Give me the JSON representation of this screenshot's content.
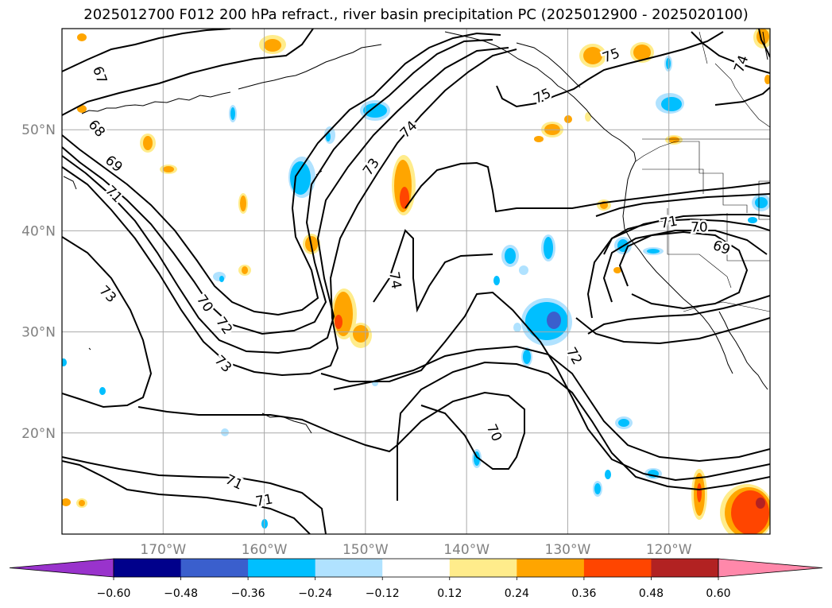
{
  "title": "2025012700 F012 200 hPa refract., river basin precipitation PC (2025012900 - 2025020100)",
  "map": {
    "lon_range": [
      -180,
      -110
    ],
    "lat_range": [
      10,
      60
    ],
    "lon_ticks": [
      {
        "lon": -170,
        "label": "170°W"
      },
      {
        "lon": -160,
        "label": "160°W"
      },
      {
        "lon": -150,
        "label": "150°W"
      },
      {
        "lon": -140,
        "label": "140°W"
      },
      {
        "lon": -130,
        "label": "130°W"
      },
      {
        "lon": -120,
        "label": "120°W"
      }
    ],
    "lat_ticks": [
      {
        "lat": 50,
        "label": "50°N"
      },
      {
        "lat": 40,
        "label": "40°N"
      },
      {
        "lat": 30,
        "label": "30°N"
      },
      {
        "lat": 20,
        "label": "20°N"
      }
    ],
    "grid": true
  },
  "contour_labels": [
    {
      "text": "67",
      "lon": -176.3,
      "lat": 55.4,
      "rot": 70
    },
    {
      "text": "68",
      "lon": -176.6,
      "lat": 50.1,
      "rot": 50
    },
    {
      "text": "69",
      "lon": -174.9,
      "lat": 46.6,
      "rot": 40
    },
    {
      "text": "71",
      "lon": -174.9,
      "lat": 43.6,
      "rot": 45
    },
    {
      "text": "73",
      "lon": -175.5,
      "lat": 33.7,
      "rot": 45
    },
    {
      "text": "70",
      "lon": -165.9,
      "lat": 32.8,
      "rot": 55
    },
    {
      "text": "72",
      "lon": -164.0,
      "lat": 30.6,
      "rot": 55
    },
    {
      "text": "73",
      "lon": -164.1,
      "lat": 26.8,
      "rot": 45
    },
    {
      "text": "71",
      "lon": -163.0,
      "lat": 15.1,
      "rot": 25
    },
    {
      "text": "71",
      "lon": -160.0,
      "lat": 13.3,
      "rot": -10
    },
    {
      "text": "73",
      "lon": -149.4,
      "lat": 46.3,
      "rot": -55
    },
    {
      "text": "74",
      "lon": -145.7,
      "lat": 50.0,
      "rot": -45
    },
    {
      "text": "74",
      "lon": -147.1,
      "lat": 35.1,
      "rot": 80
    },
    {
      "text": "75",
      "lon": -132.5,
      "lat": 53.3,
      "rot": -25
    },
    {
      "text": "75",
      "lon": -125.7,
      "lat": 57.3,
      "rot": -20
    },
    {
      "text": "74",
      "lon": -112.8,
      "lat": 56.5,
      "rot": -70
    },
    {
      "text": "72",
      "lon": -129.4,
      "lat": 27.6,
      "rot": 60
    },
    {
      "text": "70",
      "lon": -137.3,
      "lat": 20.0,
      "rot": 65
    },
    {
      "text": "71",
      "lon": -120.0,
      "lat": 40.8,
      "rot": -10
    },
    {
      "text": "70",
      "lon": -117.0,
      "lat": 40.3,
      "rot": 0
    },
    {
      "text": "69",
      "lon": -114.8,
      "lat": 38.3,
      "rot": 20
    }
  ],
  "colorbar": {
    "colors": [
      "#9933cc",
      "#00008b",
      "#3a5fcd",
      "#00bfff",
      "#b0e2ff",
      "#ffffff",
      "#ffec8b",
      "#ffa500",
      "#ff4500",
      "#b22222",
      "#ff88aa"
    ],
    "tick_labels": [
      "−0.60",
      "−0.48",
      "−0.36",
      "−0.24",
      "−0.12",
      "0.12",
      "0.24",
      "0.36",
      "0.48",
      "0.60"
    ]
  },
  "precip_colors": {
    "pos_weak": "#ffec8b",
    "pos_mid": "#ffa500",
    "pos_strong": "#ff4500",
    "pos_max": "#b22222",
    "neg_weak": "#b0e2ff",
    "neg_mid": "#00bfff",
    "neg_strong": "#3a5fcd"
  }
}
